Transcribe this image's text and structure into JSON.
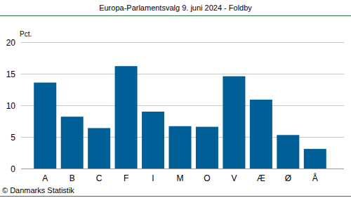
{
  "chart_data": {
    "type": "bar",
    "title": "Europa-Parlamentsvalg 9. juni 2024 - Foldby",
    "y_label": "Pct.",
    "source": "© Danmarks Statistik",
    "categories": [
      "A",
      "B",
      "C",
      "F",
      "I",
      "M",
      "O",
      "V",
      "Æ",
      "Ø",
      "Å"
    ],
    "values": [
      13.6,
      8.2,
      6.4,
      16.2,
      9.0,
      6.7,
      6.6,
      14.6,
      10.9,
      5.3,
      3.1
    ],
    "color": "#005f96",
    "ylim": [
      0,
      20
    ],
    "yticks": [
      0,
      5,
      10,
      15,
      20
    ],
    "grid": true
  }
}
